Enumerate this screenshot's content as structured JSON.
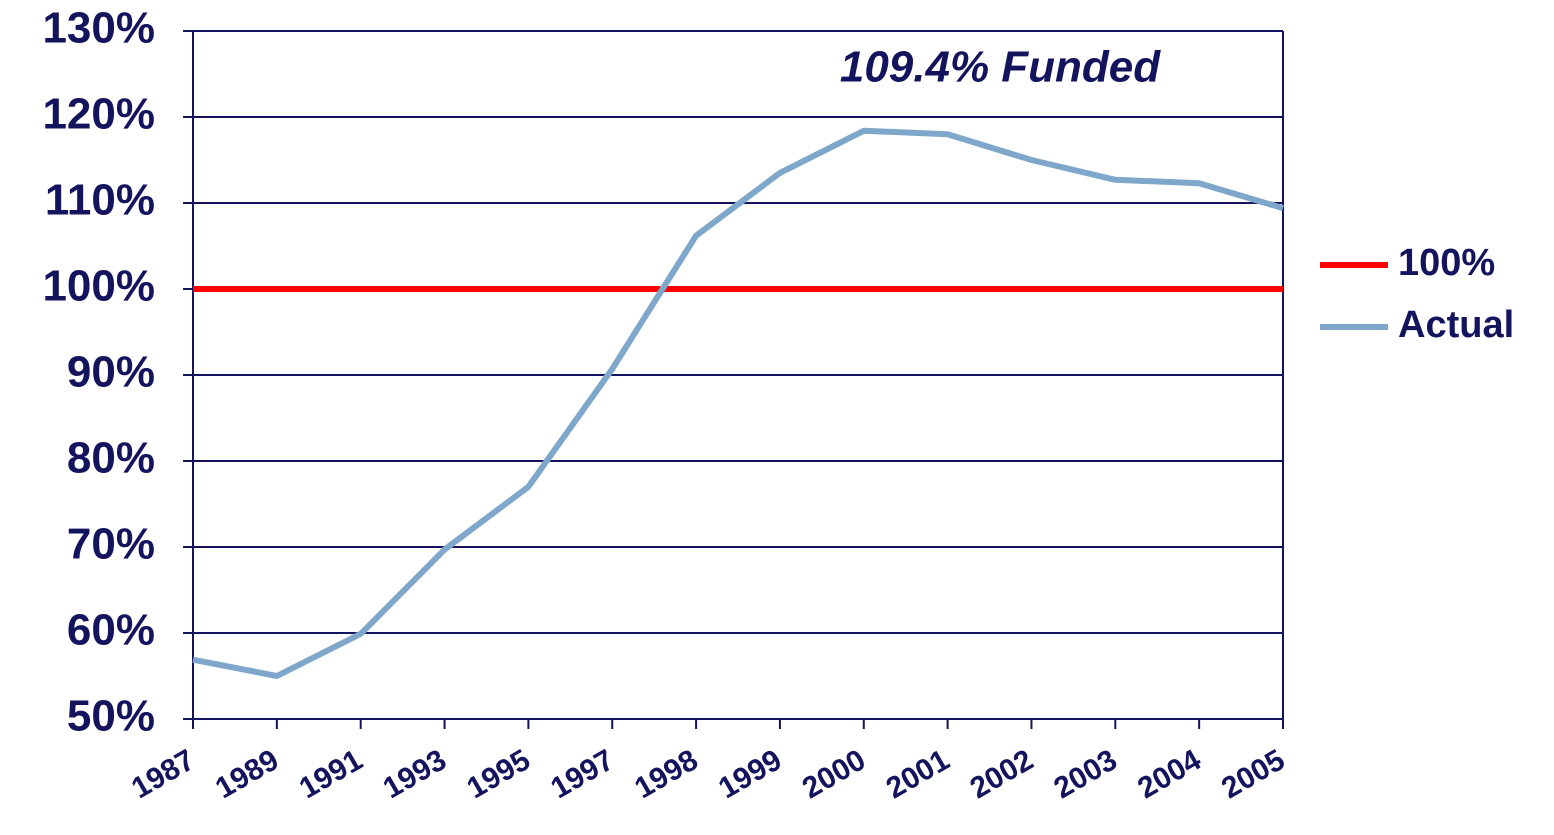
{
  "chart_data": {
    "type": "line",
    "categories": [
      "1987",
      "1989",
      "1991",
      "1993",
      "1995",
      "1997",
      "1998",
      "1999",
      "2000",
      "2001",
      "2002",
      "2003",
      "2004",
      "2005"
    ],
    "series": [
      {
        "name": "100%",
        "color": "#ff0000",
        "values": [
          100,
          100,
          100,
          100,
          100,
          100,
          100,
          100,
          100,
          100,
          100,
          100,
          100,
          100
        ]
      },
      {
        "name": "Actual",
        "color": "#7fa7cb",
        "values": [
          56.9,
          55.0,
          59.9,
          69.7,
          77.0,
          90.7,
          106.2,
          113.5,
          118.4,
          118.0,
          115.0,
          112.7,
          112.3,
          109.4
        ]
      }
    ],
    "ylim": [
      50,
      130
    ],
    "yticks": [
      {
        "value": 50,
        "label": "50%"
      },
      {
        "value": 60,
        "label": "60%"
      },
      {
        "value": 70,
        "label": "70%"
      },
      {
        "value": 80,
        "label": "80%"
      },
      {
        "value": 90,
        "label": "90%"
      },
      {
        "value": 100,
        "label": "100%"
      },
      {
        "value": 110,
        "label": "110%"
      },
      {
        "value": 120,
        "label": "120%"
      },
      {
        "value": 130,
        "label": "130%"
      }
    ],
    "annotation": "109.4% Funded",
    "grid": true,
    "legend": "right"
  }
}
